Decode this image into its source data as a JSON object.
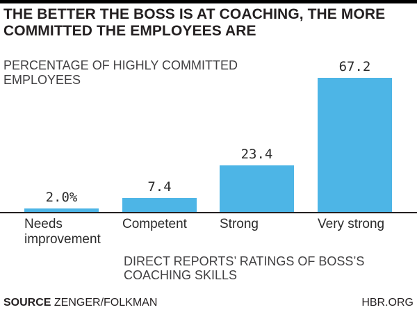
{
  "header": {
    "title": "THE BETTER THE BOSS IS AT COACHING, THE MORE COMMITTED THE EMPLOYEES ARE"
  },
  "chart_data": {
    "type": "bar",
    "title": "THE BETTER THE BOSS IS AT COACHING, THE MORE COMMITTED THE EMPLOYEES ARE",
    "ylabel": "PERCENTAGE OF HIGHLY COMMITTED EMPLOYEES",
    "xlabel": "DIRECT REPORTS’ RATINGS OF BOSS’S COACHING SKILLS",
    "categories": [
      "Needs improvement",
      "Competent",
      "Strong",
      "Very strong"
    ],
    "values": [
      2.0,
      7.4,
      23.4,
      67.2
    ],
    "value_labels": [
      "2.0%",
      "7.4",
      "23.4",
      "67.2"
    ],
    "ylim": [
      0,
      70
    ],
    "grid": false,
    "legend": "none",
    "bar_color": "#4db5e6",
    "axis_line_color": "#231f20"
  },
  "footer": {
    "source_label": "SOURCE",
    "source_value": "ZENGER/FOLKMAN",
    "brand": "HBR.ORG"
  },
  "colors": {
    "top_rule": "#000000",
    "title_text": "#231f20",
    "muted_text": "#414042",
    "bar": "#4db5e6"
  }
}
